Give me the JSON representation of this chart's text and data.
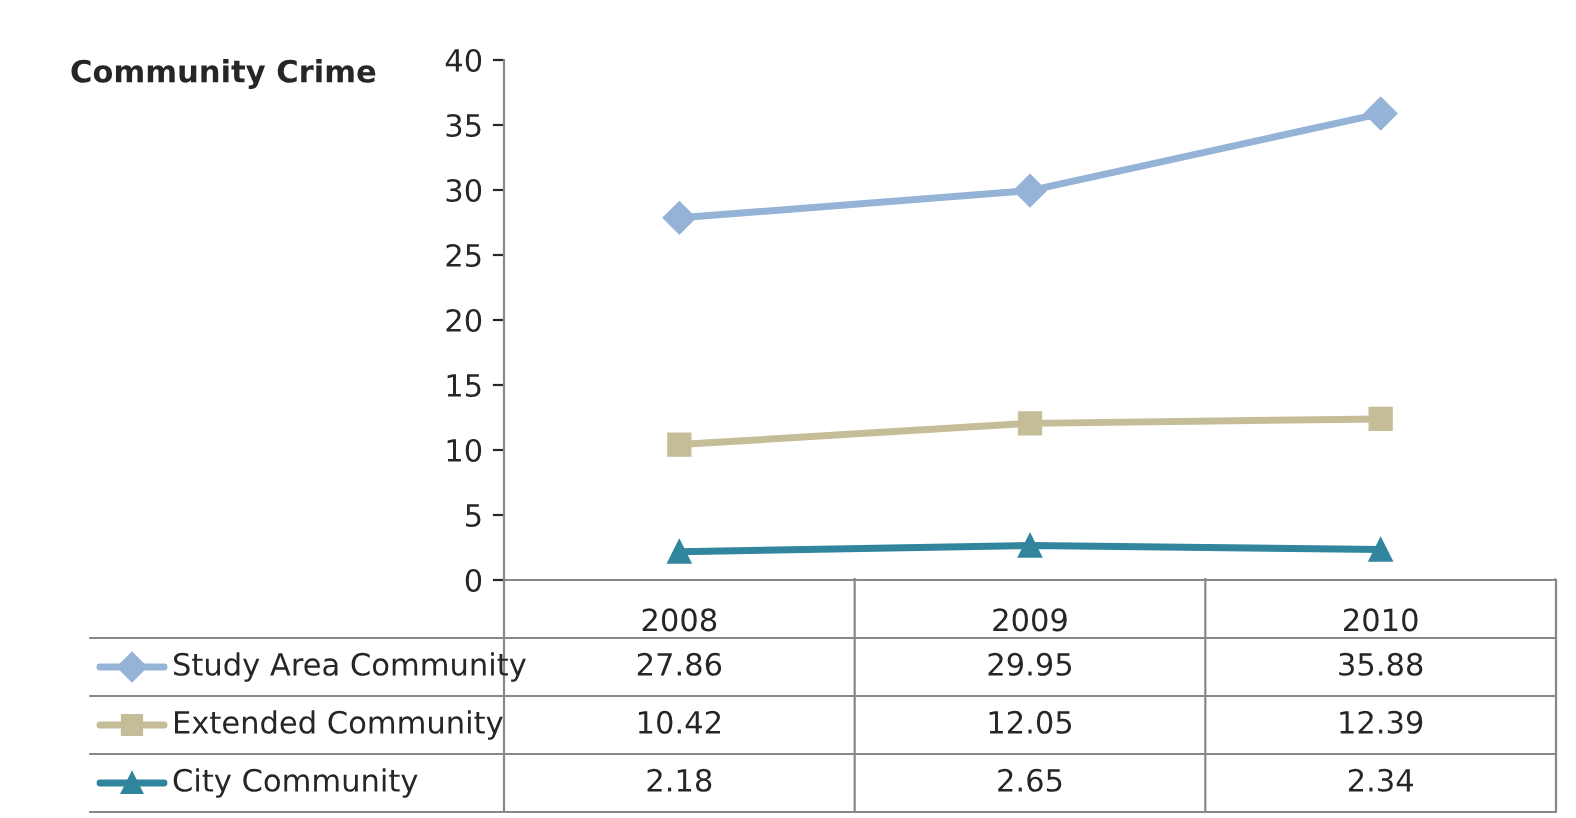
{
  "chart_data": {
    "type": "line",
    "title": "Community Crime",
    "categories": [
      "2008",
      "2009",
      "2010"
    ],
    "series": [
      {
        "name": "Study Area Community",
        "color": "#95b3d7",
        "marker": "diamond",
        "values": [
          27.86,
          29.95,
          35.88
        ]
      },
      {
        "name": "Extended Community",
        "color": "#c4bd97",
        "marker": "square",
        "values": [
          10.42,
          12.05,
          12.39
        ]
      },
      {
        "name": "City Community",
        "color": "#31859c",
        "marker": "triangle",
        "values": [
          2.18,
          2.65,
          2.34
        ]
      }
    ],
    "ylim": [
      0,
      40
    ],
    "yticks": [
      0,
      5,
      10,
      15,
      20,
      25,
      30,
      35,
      40
    ],
    "grid": false,
    "legend": "bottom left",
    "data_labels": true
  }
}
